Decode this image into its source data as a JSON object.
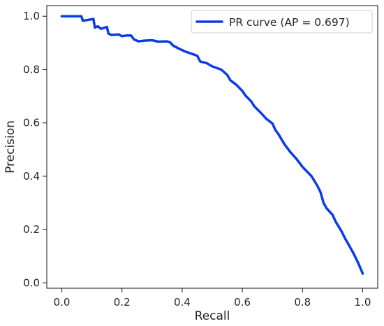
{
  "chart_data": {
    "type": "line",
    "title": "",
    "xlabel": "Recall",
    "ylabel": "Precision",
    "xlim": [
      -0.05,
      1.05
    ],
    "ylim": [
      -0.02,
      1.04
    ],
    "x_ticks": [
      0.0,
      0.2,
      0.4,
      0.6,
      0.8,
      1.0
    ],
    "x_tick_labels": [
      "0.0",
      "0.2",
      "0.4",
      "0.6",
      "0.8",
      "1.0"
    ],
    "y_ticks": [
      0.0,
      0.2,
      0.4,
      0.6,
      0.8,
      1.0
    ],
    "y_tick_labels": [
      "0.0",
      "0.2",
      "0.4",
      "0.6",
      "0.8",
      "1.0"
    ],
    "grid": false,
    "legend_position": "top-right",
    "series": [
      {
        "name": "PR curve (AP = 0.697)",
        "color": "#0a3ce6",
        "points": [
          [
            0.0,
            1.0
          ],
          [
            0.065,
            1.0
          ],
          [
            0.07,
            0.983
          ],
          [
            0.105,
            0.99
          ],
          [
            0.11,
            0.958
          ],
          [
            0.12,
            0.962
          ],
          [
            0.13,
            0.953
          ],
          [
            0.15,
            0.96
          ],
          [
            0.155,
            0.935
          ],
          [
            0.165,
            0.93
          ],
          [
            0.19,
            0.932
          ],
          [
            0.2,
            0.925
          ],
          [
            0.215,
            0.928
          ],
          [
            0.23,
            0.928
          ],
          [
            0.24,
            0.913
          ],
          [
            0.255,
            0.906
          ],
          [
            0.27,
            0.908
          ],
          [
            0.3,
            0.91
          ],
          [
            0.32,
            0.905
          ],
          [
            0.35,
            0.906
          ],
          [
            0.36,
            0.902
          ],
          [
            0.37,
            0.89
          ],
          [
            0.39,
            0.878
          ],
          [
            0.41,
            0.868
          ],
          [
            0.43,
            0.86
          ],
          [
            0.45,
            0.852
          ],
          [
            0.46,
            0.83
          ],
          [
            0.48,
            0.825
          ],
          [
            0.5,
            0.812
          ],
          [
            0.53,
            0.8
          ],
          [
            0.55,
            0.78
          ],
          [
            0.56,
            0.76
          ],
          [
            0.58,
            0.743
          ],
          [
            0.6,
            0.72
          ],
          [
            0.61,
            0.703
          ],
          [
            0.63,
            0.68
          ],
          [
            0.64,
            0.662
          ],
          [
            0.66,
            0.64
          ],
          [
            0.68,
            0.615
          ],
          [
            0.7,
            0.598
          ],
          [
            0.71,
            0.573
          ],
          [
            0.72,
            0.558
          ],
          [
            0.74,
            0.52
          ],
          [
            0.76,
            0.49
          ],
          [
            0.78,
            0.465
          ],
          [
            0.8,
            0.435
          ],
          [
            0.83,
            0.4
          ],
          [
            0.85,
            0.363
          ],
          [
            0.86,
            0.34
          ],
          [
            0.87,
            0.3
          ],
          [
            0.88,
            0.28
          ],
          [
            0.9,
            0.255
          ],
          [
            0.91,
            0.23
          ],
          [
            0.93,
            0.193
          ],
          [
            0.94,
            0.17
          ],
          [
            0.955,
            0.14
          ],
          [
            0.97,
            0.11
          ],
          [
            0.985,
            0.075
          ],
          [
            1.0,
            0.035
          ]
        ]
      }
    ]
  }
}
